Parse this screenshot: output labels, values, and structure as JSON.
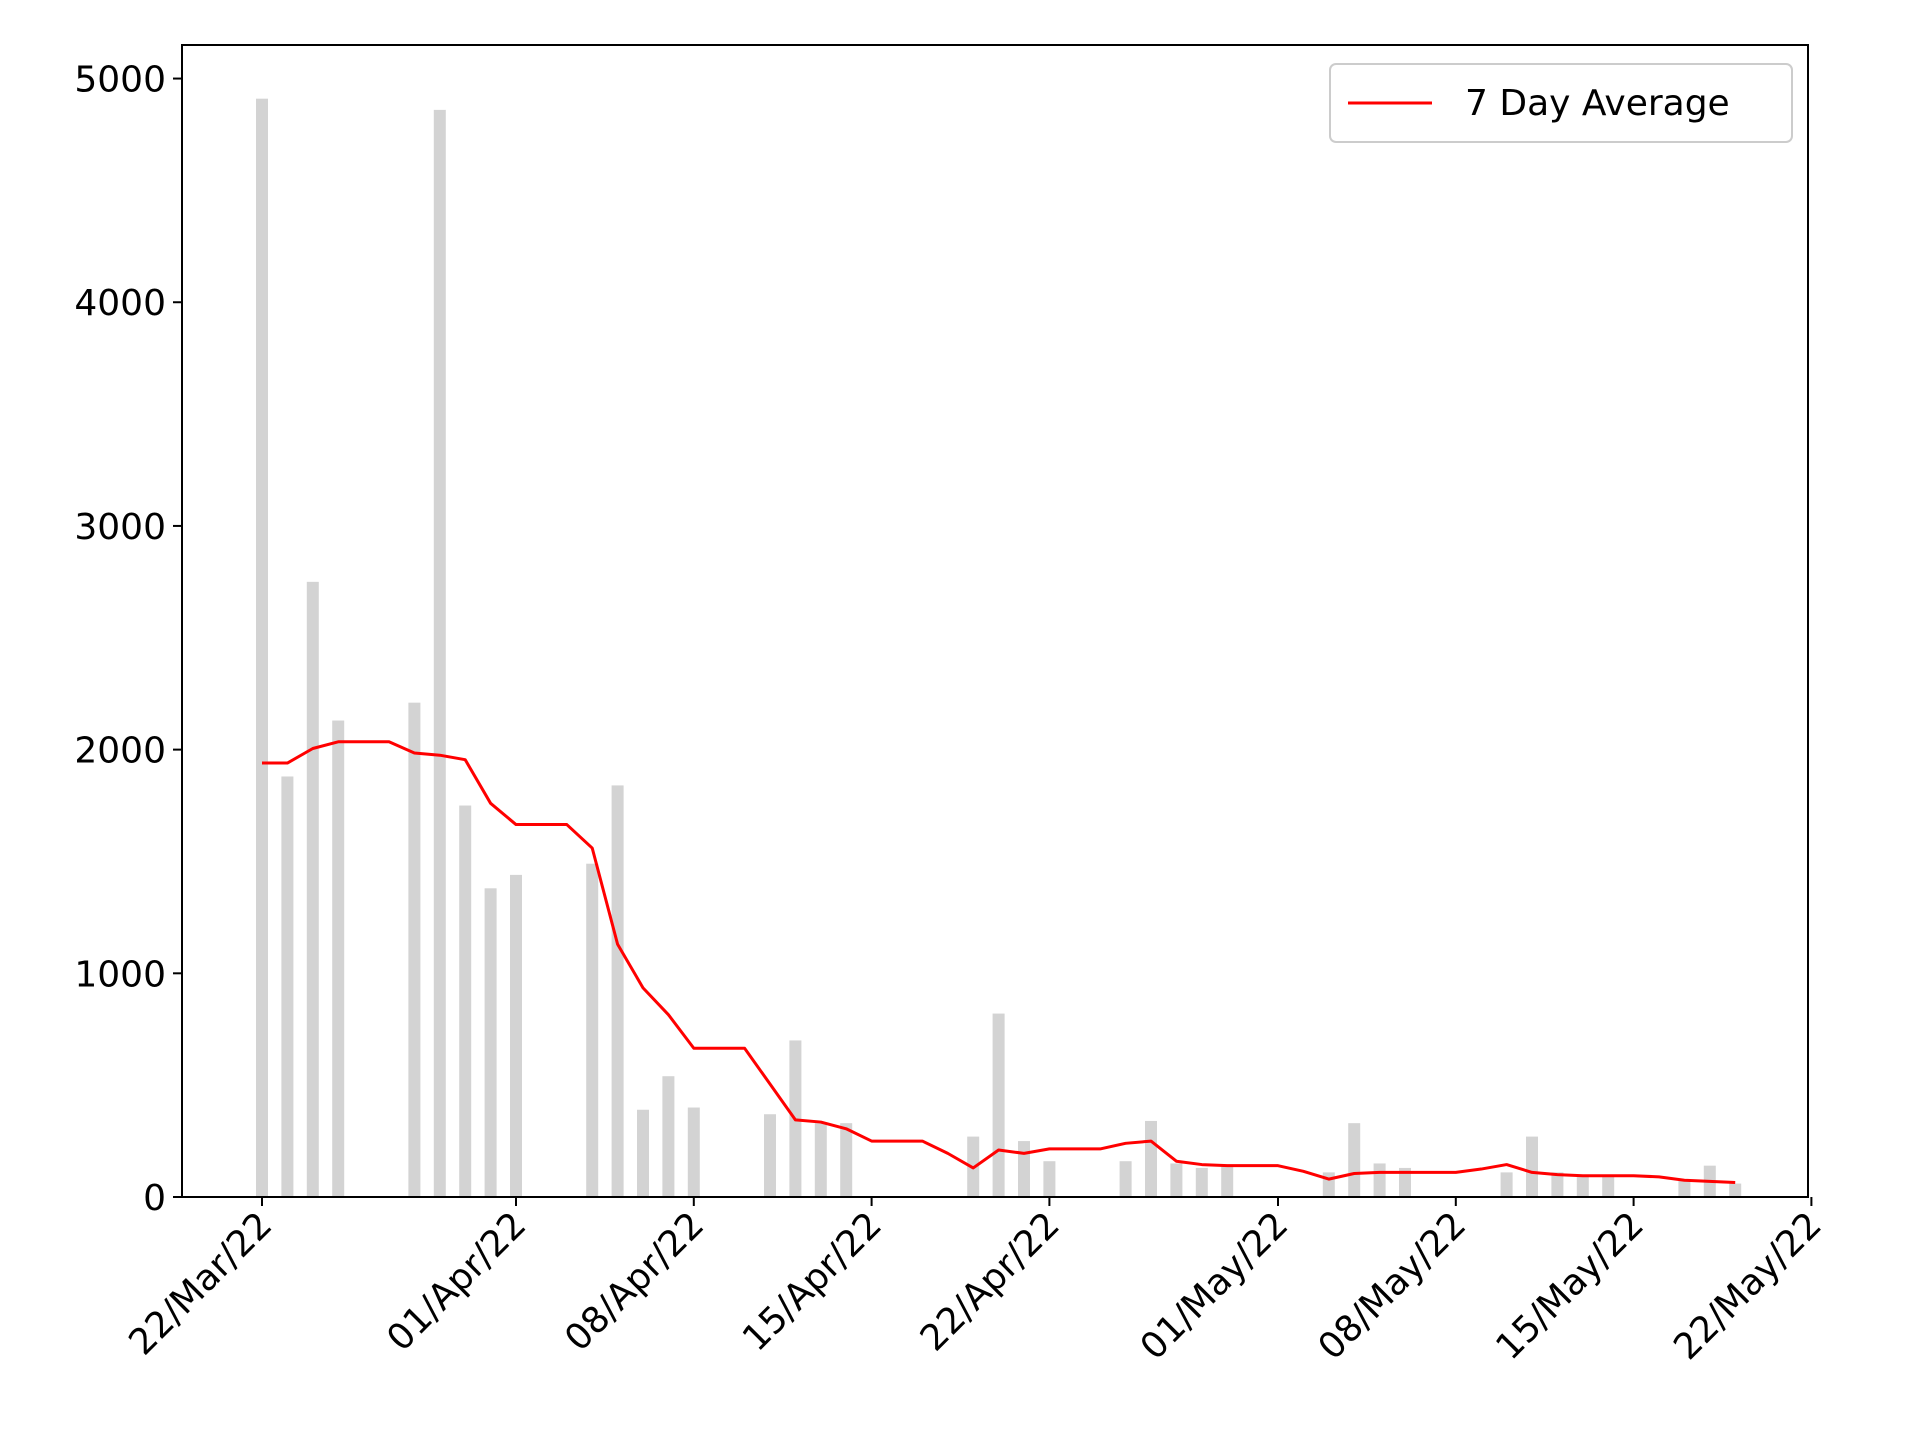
{
  "chart_data": {
    "type": "bar",
    "title": "",
    "xlabel": "",
    "ylabel": "",
    "ylim": [
      0,
      5150
    ],
    "grid": false,
    "legend_position": "top-right",
    "x_ticks": [
      "22/Mar/22",
      "01/Apr/22",
      "08/Apr/22",
      "15/Apr/22",
      "22/Apr/22",
      "01/May/22",
      "08/May/22",
      "15/May/22",
      "22/May/22"
    ],
    "y_ticks": [
      "0",
      "1000",
      "2000",
      "3000",
      "4000",
      "5000"
    ],
    "x": [
      "22/Mar/22",
      "23/Mar/22",
      "24/Mar/22",
      "25/Mar/22",
      "26/Mar/22",
      "27/Mar/22",
      "28/Mar/22",
      "29/Mar/22",
      "30/Mar/22",
      "31/Mar/22",
      "01/Apr/22",
      "02/Apr/22",
      "03/Apr/22",
      "04/Apr/22",
      "05/Apr/22",
      "06/Apr/22",
      "07/Apr/22",
      "08/Apr/22",
      "09/Apr/22",
      "10/Apr/22",
      "11/Apr/22",
      "12/Apr/22",
      "13/Apr/22",
      "14/Apr/22",
      "15/Apr/22",
      "16/Apr/22",
      "17/Apr/22",
      "18/Apr/22",
      "19/Apr/22",
      "20/Apr/22",
      "21/Apr/22",
      "22/Apr/22",
      "23/Apr/22",
      "24/Apr/22",
      "25/Apr/22",
      "26/Apr/22",
      "27/Apr/22",
      "28/Apr/22",
      "29/Apr/22",
      "30/Apr/22",
      "01/May/22",
      "02/May/22",
      "03/May/22",
      "04/May/22",
      "05/May/22",
      "06/May/22",
      "07/May/22",
      "08/May/22",
      "09/May/22",
      "10/May/22",
      "11/May/22",
      "12/May/22",
      "13/May/22",
      "14/May/22",
      "15/May/22",
      "16/May/22",
      "17/May/22",
      "18/May/22",
      "19/May/22"
    ],
    "series": [
      {
        "kind": "bar",
        "color": "#d3d3d3",
        "values": [
          4910,
          1880,
          2750,
          2130,
          0,
          0,
          2210,
          4860,
          1750,
          1380,
          1440,
          0,
          0,
          1490,
          1840,
          390,
          540,
          400,
          0,
          0,
          370,
          700,
          330,
          330,
          0,
          0,
          0,
          0,
          270,
          820,
          250,
          160,
          0,
          0,
          160,
          340,
          150,
          130,
          140,
          0,
          0,
          0,
          110,
          330,
          150,
          130,
          0,
          0,
          0,
          110,
          270,
          110,
          90,
          90,
          0,
          0,
          80,
          140,
          60
        ]
      },
      {
        "kind": "line",
        "name": "7 Day Average",
        "color": "#ff0000",
        "values": [
          1940,
          1940,
          2005,
          2035,
          2035,
          2035,
          1985,
          1975,
          1955,
          1760,
          1665,
          1665,
          1665,
          1560,
          1130,
          935,
          815,
          665,
          665,
          665,
          505,
          345,
          335,
          305,
          250,
          250,
          250,
          195,
          130,
          210,
          195,
          215,
          215,
          215,
          240,
          250,
          160,
          145,
          140,
          140,
          140,
          115,
          80,
          105,
          110,
          110,
          110,
          110,
          125,
          145,
          110,
          100,
          95,
          95,
          95,
          90,
          75,
          70,
          65
        ]
      }
    ]
  }
}
